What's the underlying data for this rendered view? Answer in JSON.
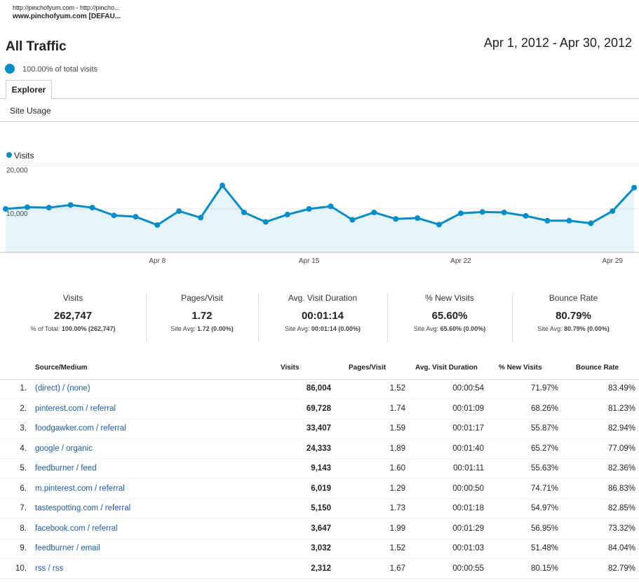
{
  "header": {
    "line1": "http://pinchofyum.com - http://pincho...",
    "line2": "www.pinchofyum.com [DEFAU...",
    "title": "All Traffic",
    "date_range": "Apr 1, 2012 - Apr 30, 2012",
    "segment": "100.00% of total visits"
  },
  "tabs": {
    "active": "Explorer",
    "sub": "Site Usage"
  },
  "chart_data": {
    "type": "line",
    "categories": [
      null,
      null,
      null,
      null,
      null,
      null,
      null,
      "Apr 8",
      null,
      null,
      null,
      null,
      null,
      null,
      "Apr 15",
      null,
      null,
      null,
      null,
      null,
      null,
      "Apr 22",
      null,
      null,
      null,
      null,
      null,
      null,
      "Apr 29",
      null
    ],
    "series": [
      {
        "name": "Visits",
        "color": "#058dc7",
        "values": [
          10000,
          10400,
          10300,
          10900,
          10300,
          8500,
          8200,
          6300,
          9500,
          8000,
          15400,
          9200,
          7000,
          8700,
          10000,
          10600,
          7500,
          9200,
          7700,
          7900,
          6400,
          9000,
          9300,
          9200,
          8400,
          7300,
          7300,
          6700,
          9500,
          14900
        ]
      }
    ],
    "ylim": [
      0,
      20000
    ],
    "yticks": [
      {
        "value": 10000,
        "label": "10,000"
      },
      {
        "value": 20000,
        "label": "20,000"
      }
    ],
    "grid": true,
    "area": true
  },
  "scorecards": [
    {
      "label": "Visits",
      "value": "262,747",
      "sub_prefix": "% of Total:",
      "sub_value": "100.00% (262,747)"
    },
    {
      "label": "Pages/Visit",
      "value": "1.72",
      "sub_prefix": "Site Avg:",
      "sub_value": "1.72 (0.00%)"
    },
    {
      "label": "Avg. Visit Duration",
      "value": "00:01:14",
      "sub_prefix": "Site Avg:",
      "sub_value": "00:01:14 (0.00%)"
    },
    {
      "label": "% New Visits",
      "value": "65.60%",
      "sub_prefix": "Site Avg:",
      "sub_value": "65.60% (0.00%)"
    },
    {
      "label": "Bounce Rate",
      "value": "80.79%",
      "sub_prefix": "Site Avg:",
      "sub_value": "80.79% (0.00%)"
    }
  ],
  "table": {
    "columns": [
      "Source/Medium",
      "Visits",
      "Pages/Visit",
      "Avg. Visit Duration",
      "% New Visits",
      "Bounce Rate"
    ],
    "rows": [
      [
        "1.",
        "(direct) / (none)",
        "86,004",
        "1.52",
        "00:00:54",
        "71.97%",
        "83.49%"
      ],
      [
        "2.",
        "pinterest.com / referral",
        "69,728",
        "1.74",
        "00:01:09",
        "68.26%",
        "81.23%"
      ],
      [
        "3.",
        "foodgawker.com / referral",
        "33,407",
        "1.59",
        "00:01:17",
        "55.87%",
        "82.94%"
      ],
      [
        "4.",
        "google / organic",
        "24,333",
        "1.89",
        "00:01:40",
        "65.27%",
        "77.09%"
      ],
      [
        "5.",
        "feedburner / feed",
        "9,143",
        "1.60",
        "00:01:11",
        "55.63%",
        "82.36%"
      ],
      [
        "6.",
        "m.pinterest.com / referral",
        "6,019",
        "1.29",
        "00:00:50",
        "74.71%",
        "86.83%"
      ],
      [
        "7.",
        "tastespotting.com / referral",
        "5,150",
        "1.73",
        "00:01:18",
        "54.97%",
        "82.85%"
      ],
      [
        "8.",
        "facebook.com / referral",
        "3,647",
        "1.99",
        "00:01:29",
        "56.95%",
        "73.32%"
      ],
      [
        "9.",
        "feedburner / email",
        "3,032",
        "1.52",
        "00:01:03",
        "51.48%",
        "84.04%"
      ],
      [
        "10.",
        "rss / rss",
        "2,312",
        "1.67",
        "00:00:55",
        "80.15%",
        "82.79%"
      ]
    ]
  }
}
